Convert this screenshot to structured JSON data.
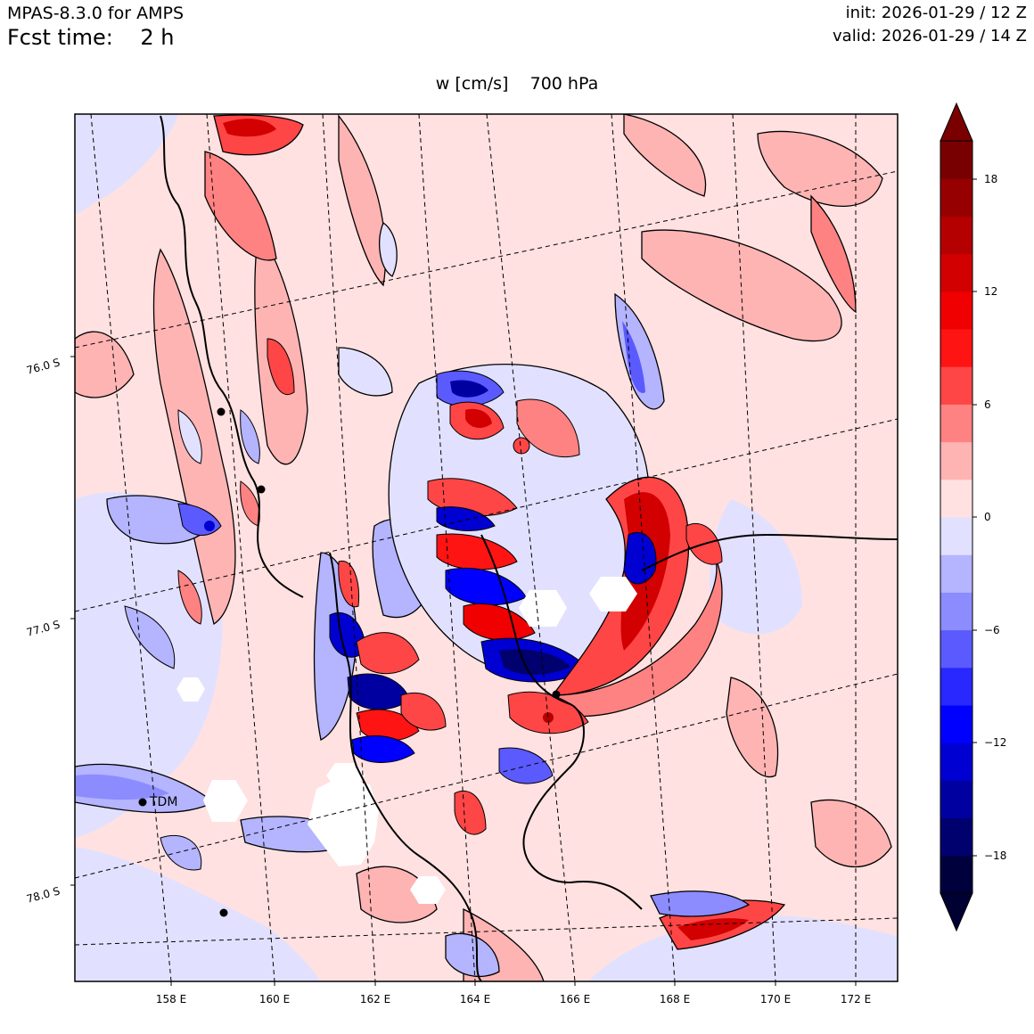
{
  "header": {
    "model": "MPAS-8.3.0 for AMPS",
    "fcst_label": "Fcst time:",
    "fcst_value": "2 h",
    "init": "init: 2026-01-29 / 12 Z",
    "valid": "valid: 2026-01-29 / 14 Z"
  },
  "map": {
    "title_var": "w [cm/s]",
    "title_level": "700 hPa",
    "station_label": "TDM",
    "lon_labels": [
      "158 E",
      "160 E",
      "162 E",
      "164 E",
      "166 E",
      "168 E",
      "170 E",
      "172 E"
    ],
    "lat_labels": [
      "76.0 S",
      "77.0 S",
      "78.0 S"
    ]
  },
  "colorbar": {
    "tick_labels": [
      "18",
      "12",
      "6",
      "0",
      "−6",
      "−12",
      "−18"
    ],
    "colors": [
      "#00003c",
      "#00006e",
      "#0000a0",
      "#0000d2",
      "#0000ff",
      "#2828ff",
      "#5a5aff",
      "#8c8cff",
      "#b4b4ff",
      "#e1e1ff",
      "#ffe1e1",
      "#ffb4b4",
      "#ff8282",
      "#ff4646",
      "#ff1414",
      "#f00000",
      "#d20000",
      "#b40000",
      "#960000",
      "#780000"
    ],
    "extend_low_color": "#000032",
    "extend_high_color": "#7a0000"
  }
}
